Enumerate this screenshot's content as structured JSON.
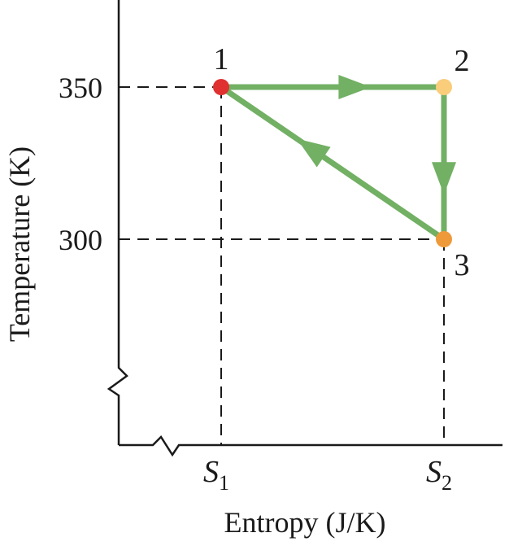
{
  "chart_data": {
    "type": "line",
    "title": "",
    "xlabel": "Entropy (J/K)",
    "ylabel": "Temperature (K)",
    "x_ticks": [
      {
        "key": "S1",
        "letter": "S",
        "sub": "1"
      },
      {
        "key": "S2",
        "letter": "S",
        "sub": "2"
      }
    ],
    "y_ticks": [
      350,
      300
    ],
    "axis_breaks": [
      "x",
      "y"
    ],
    "points": [
      {
        "label": "1",
        "x": "S1",
        "y": 350,
        "color": "#e03030"
      },
      {
        "label": "2",
        "x": "S2",
        "y": 350,
        "color": "#f9cd7a"
      },
      {
        "label": "3",
        "x": "S2",
        "y": 300,
        "color": "#ee9a3a"
      }
    ],
    "cycle": [
      {
        "from": "1",
        "to": "2"
      },
      {
        "from": "2",
        "to": "3"
      },
      {
        "from": "3",
        "to": "1"
      }
    ],
    "colors": {
      "path": "#72b064",
      "axis": "#1a1a1a"
    }
  }
}
